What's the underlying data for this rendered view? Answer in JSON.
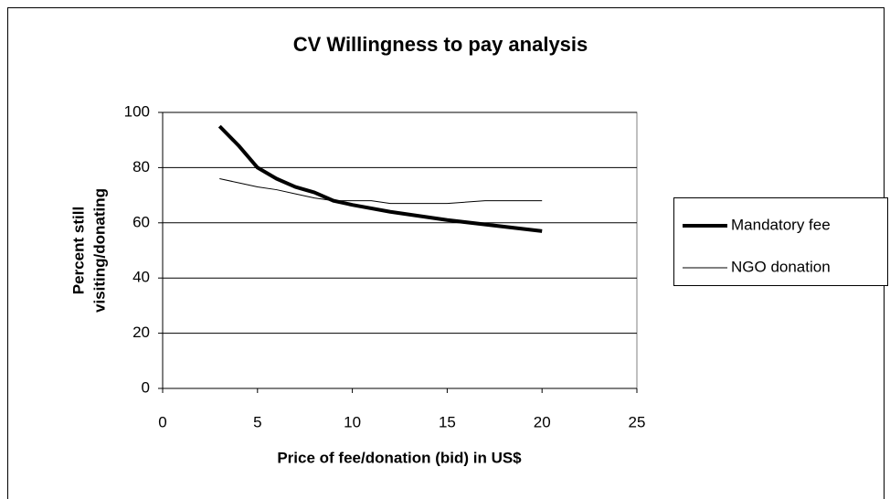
{
  "chart_data": {
    "type": "line",
    "title": "CV Willingness to pay analysis",
    "xlabel": "Price of fee/donation (bid) in US$",
    "ylabel": [
      "Percent still",
      "visiting/donating"
    ],
    "xlim": [
      0,
      25
    ],
    "xticks": [
      0,
      5,
      10,
      15,
      20,
      25
    ],
    "ylim": [
      0,
      100
    ],
    "yticks": [
      0,
      20,
      40,
      60,
      80,
      100
    ],
    "grid": true,
    "legend": "right",
    "series": [
      {
        "name": "Mandatory fee",
        "color": "#000000",
        "line_width": 4,
        "x": [
          3,
          4,
          4.5,
          5,
          6,
          7,
          8,
          9,
          10,
          12,
          15,
          20
        ],
        "values": [
          95,
          88,
          84,
          80,
          76,
          73,
          71,
          68,
          66.5,
          64,
          61,
          57
        ]
      },
      {
        "name": "NGO donation",
        "color": "#000000",
        "line_width": 1,
        "x": [
          3,
          4,
          5,
          6,
          7,
          8,
          9,
          10,
          11,
          12,
          15,
          17,
          20
        ],
        "values": [
          76,
          74.5,
          73,
          72,
          70.5,
          69,
          68,
          68,
          68,
          67,
          67,
          68,
          68
        ]
      }
    ]
  }
}
